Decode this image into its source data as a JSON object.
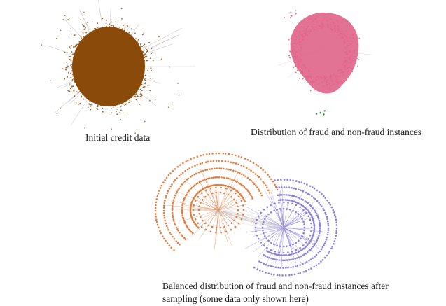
{
  "figure": {
    "panels": [
      {
        "id": "initial",
        "caption": "Initial credit data",
        "colors": {
          "nodes": "#8a4b0a",
          "edges": "#c8c8c8"
        }
      },
      {
        "id": "distribution",
        "caption": "Distribution of fraud and non-fraud instances",
        "colors": {
          "non_fraud": "#e0648a",
          "fraud": "#2f8a4a",
          "edges": "#d9c9cf"
        }
      },
      {
        "id": "balanced",
        "caption_line1": "Balanced distribution of fraud and non-fraud instances after",
        "caption_line2": "sampling (some data only shown here)",
        "colors": {
          "fraud": "#e0783a",
          "non_fraud": "#8878d8",
          "edges": "#c8c8cc"
        }
      }
    ]
  }
}
